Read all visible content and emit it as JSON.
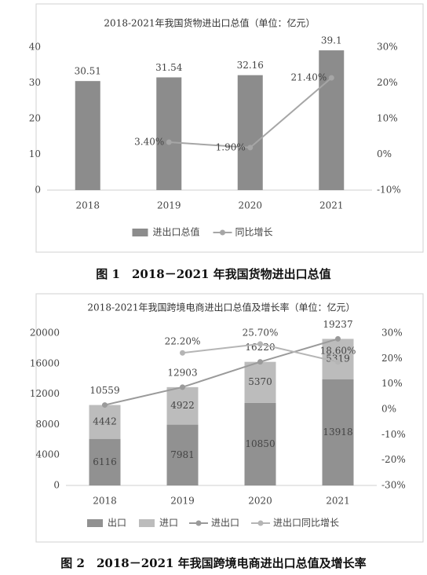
{
  "chart_data": [
    {
      "type": "bar",
      "title": "2018-2021年我国货物进出口总值（单位：亿元）",
      "caption": "图 1　2018－2021 年我国货物进出口总值",
      "categories": [
        "2018",
        "2019",
        "2020",
        "2021"
      ],
      "series": [
        {
          "name": "进出口总值",
          "type": "bar",
          "color": "#8c8c8c",
          "values": [
            30.51,
            31.54,
            32.16,
            39.1
          ]
        },
        {
          "name": "同比增长",
          "type": "line",
          "axis": "y2",
          "color": "#a6a6a6",
          "values": [
            null,
            3.4,
            1.9,
            21.4
          ],
          "value_labels": [
            null,
            "3.40%",
            "1.90%",
            "21.40%"
          ]
        }
      ],
      "ylim": [
        0,
        40
      ],
      "yticks": [
        0,
        10,
        20,
        30,
        40
      ],
      "y2lim": [
        -10,
        30
      ],
      "y2ticks": [
        {
          "value": -10,
          "label": "-10%"
        },
        {
          "value": 0,
          "label": "0%"
        },
        {
          "value": 10,
          "label": "10%"
        },
        {
          "value": 20,
          "label": "20%"
        },
        {
          "value": 30,
          "label": "30%"
        }
      ],
      "legend": "bottom"
    },
    {
      "type": "bar",
      "title": "2018-2021年我国跨境电商进出口总值及增长率（单位：亿元）",
      "caption": "图 2　2018－2021 年我国跨境电商进出口总值及增长率",
      "categories": [
        "2018",
        "2019",
        "2020",
        "2021"
      ],
      "series": [
        {
          "name": "出口",
          "type": "bar",
          "stack": true,
          "color": "#919191",
          "values": [
            6116,
            7981,
            10850,
            13918
          ]
        },
        {
          "name": "进口",
          "type": "bar",
          "stack": true,
          "color": "#bcbcbc",
          "values": [
            4442,
            4922,
            5370,
            5319
          ]
        },
        {
          "name": "进出口",
          "type": "line",
          "color": "#9a9a9a",
          "values": [
            10559,
            12903,
            16220,
            19237
          ]
        },
        {
          "name": "进出口同比增长",
          "type": "line",
          "axis": "y2",
          "color": "#b5b5b5",
          "values": [
            null,
            22.2,
            25.7,
            18.6
          ],
          "value_labels": [
            null,
            "22.20%",
            "25.70%",
            "18.60%"
          ]
        }
      ],
      "ylim": [
        0,
        20000
      ],
      "yticks": [
        0,
        4000,
        8000,
        12000,
        16000,
        20000
      ],
      "y2lim": [
        -30,
        30
      ],
      "y2ticks": [
        {
          "value": -30,
          "label": "-30%"
        },
        {
          "value": -20,
          "label": "-20%"
        },
        {
          "value": -10,
          "label": "-10%"
        },
        {
          "value": 0,
          "label": "0%"
        },
        {
          "value": 10,
          "label": "10%"
        },
        {
          "value": 20,
          "label": "20%"
        },
        {
          "value": 30,
          "label": "30%"
        }
      ],
      "legend": "bottom"
    }
  ]
}
